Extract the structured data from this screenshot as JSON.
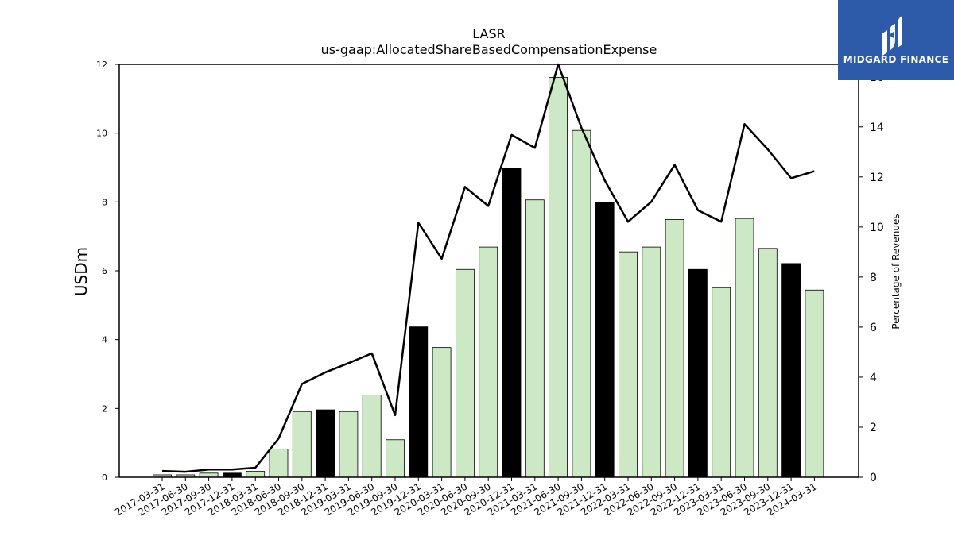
{
  "chart_data": {
    "type": "bar",
    "title": "LASR",
    "subtitle": "us-gaap:AllocatedShareBasedCompensationExpense",
    "ylabel": "USDm",
    "ylabel_right": "Percentage of Revenues",
    "ylim": [
      0,
      12
    ],
    "ylim_right": [
      0,
      16.5
    ],
    "yticks": [
      "0",
      "2",
      "4",
      "6",
      "8",
      "10",
      "12"
    ],
    "yticks_right": [
      "0",
      "2",
      "4",
      "6",
      "8",
      "10",
      "12",
      "14",
      "16"
    ],
    "categories": [
      "2017-03-31",
      "2017-06-30",
      "2017-09-30",
      "2017-12-31",
      "2018-03-31",
      "2018-06-30",
      "2018-09-30",
      "2018-12-31",
      "2019-03-31",
      "2019-06-30",
      "2019-09-30",
      "2019-12-31",
      "2020-03-31",
      "2020-06-30",
      "2020-09-30",
      "2020-12-31",
      "2021-03-31",
      "2021-06-30",
      "2021-09-30",
      "2021-12-31",
      "2022-03-31",
      "2022-06-30",
      "2022-09-30",
      "2022-12-31",
      "2023-03-31",
      "2023-06-30",
      "2023-09-30",
      "2023-12-31",
      "2024-03-31"
    ],
    "series": [
      {
        "type": "bar",
        "values": [
          0.07,
          0.07,
          0.12,
          0.12,
          0.17,
          0.82,
          1.91,
          1.96,
          1.91,
          2.39,
          1.09,
          4.37,
          3.77,
          6.04,
          6.69,
          8.99,
          8.06,
          11.62,
          10.08,
          7.98,
          6.55,
          6.69,
          7.49,
          6.04,
          5.51,
          7.52,
          6.65,
          6.21,
          5.44
        ],
        "colors": [
          "#cce8c4",
          "#cce8c4",
          "#cce8c4",
          "#000000",
          "#cce8c4",
          "#cce8c4",
          "#cce8c4",
          "#000000",
          "#cce8c4",
          "#cce8c4",
          "#cce8c4",
          "#000000",
          "#cce8c4",
          "#cce8c4",
          "#cce8c4",
          "#000000",
          "#cce8c4",
          "#cce8c4",
          "#cce8c4",
          "#000000",
          "#cce8c4",
          "#cce8c4",
          "#cce8c4",
          "#000000",
          "#cce8c4",
          "#cce8c4",
          "#cce8c4",
          "#000000",
          "#cce8c4"
        ]
      },
      {
        "type": "line",
        "axis": "right",
        "values": [
          0.25,
          0.22,
          0.31,
          0.31,
          0.38,
          1.55,
          3.73,
          4.19,
          4.56,
          4.95,
          2.48,
          10.17,
          8.73,
          11.6,
          10.84,
          13.68,
          13.16,
          16.5,
          13.96,
          11.86,
          10.21,
          11.01,
          12.48,
          10.67,
          10.21,
          14.11,
          13.1,
          11.95,
          12.23
        ]
      }
    ],
    "colors": {
      "bar_light": "#cce8c4",
      "bar_dark": "#000000",
      "line": "#000000"
    },
    "grid": false,
    "legend": "none"
  },
  "logo": {
    "text": "MIDGARD FINANCE",
    "background": "#2d5aa9"
  }
}
